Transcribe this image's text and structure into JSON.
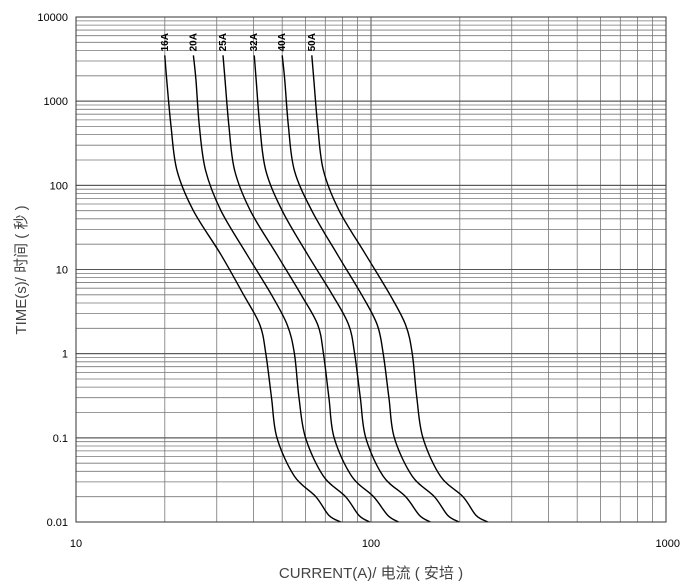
{
  "chart_data": {
    "type": "line",
    "title": "",
    "xlabel": "CURRENT(A)/ 电流 ( 安培 )",
    "ylabel": "TIME(s)/ 时间 ( 秒 )",
    "x_scale": "log",
    "y_scale": "log",
    "xlim": [
      10,
      1000
    ],
    "ylim": [
      0.01,
      10000
    ],
    "x_ticks": [
      "10",
      "100",
      "1000"
    ],
    "y_ticks": [
      "0.01",
      "0.1",
      "1",
      "10",
      "100",
      "1000",
      "10000"
    ],
    "grid": true,
    "legend": "labels at top of curves",
    "series": [
      {
        "name": "16A",
        "points": [
          [
            20,
            3500
          ],
          [
            20.3,
            1800
          ],
          [
            21,
            500
          ],
          [
            22,
            150
          ],
          [
            25,
            50
          ],
          [
            31,
            15
          ],
          [
            37,
            5
          ],
          [
            42,
            2.2
          ],
          [
            44,
            1
          ],
          [
            46,
            0.3
          ],
          [
            48,
            0.1
          ],
          [
            55,
            0.035
          ],
          [
            65,
            0.02
          ],
          [
            72,
            0.012
          ],
          [
            79,
            0.01
          ]
        ]
      },
      {
        "name": "20A",
        "points": [
          [
            25,
            3500
          ],
          [
            25.5,
            1800
          ],
          [
            26.2,
            500
          ],
          [
            27.5,
            150
          ],
          [
            31,
            50
          ],
          [
            38,
            15
          ],
          [
            46,
            5
          ],
          [
            52,
            2.2
          ],
          [
            55,
            1
          ],
          [
            57,
            0.3
          ],
          [
            60,
            0.1
          ],
          [
            69,
            0.035
          ],
          [
            82,
            0.02
          ],
          [
            91,
            0.012
          ],
          [
            99,
            0.01
          ]
        ]
      },
      {
        "name": "25A",
        "points": [
          [
            31.5,
            3500
          ],
          [
            32,
            1800
          ],
          [
            33,
            500
          ],
          [
            34.5,
            150
          ],
          [
            39,
            50
          ],
          [
            48,
            15
          ],
          [
            58,
            5
          ],
          [
            66,
            2.2
          ],
          [
            69,
            1
          ],
          [
            72,
            0.3
          ],
          [
            75,
            0.1
          ],
          [
            86,
            0.035
          ],
          [
            102,
            0.02
          ],
          [
            114,
            0.012
          ],
          [
            124,
            0.01
          ]
        ]
      },
      {
        "name": "32A",
        "points": [
          [
            40.2,
            3500
          ],
          [
            40.8,
            1800
          ],
          [
            42,
            500
          ],
          [
            44,
            150
          ],
          [
            50,
            50
          ],
          [
            61,
            15
          ],
          [
            74,
            5
          ],
          [
            84,
            2.2
          ],
          [
            88,
            1
          ],
          [
            92,
            0.3
          ],
          [
            96,
            0.1
          ],
          [
            110,
            0.035
          ],
          [
            131,
            0.02
          ],
          [
            146,
            0.012
          ],
          [
            159,
            0.01
          ]
        ]
      },
      {
        "name": "40A",
        "points": [
          [
            50,
            3500
          ],
          [
            51,
            1800
          ],
          [
            52.5,
            500
          ],
          [
            55,
            150
          ],
          [
            63,
            50
          ],
          [
            77,
            15
          ],
          [
            93,
            5
          ],
          [
            105,
            2.2
          ],
          [
            110,
            1
          ],
          [
            115,
            0.3
          ],
          [
            120,
            0.1
          ],
          [
            138,
            0.035
          ],
          [
            164,
            0.02
          ],
          [
            182,
            0.012
          ],
          [
            199,
            0.01
          ]
        ]
      },
      {
        "name": "50A",
        "points": [
          [
            63,
            3500
          ],
          [
            64,
            1800
          ],
          [
            66,
            500
          ],
          [
            69,
            150
          ],
          [
            78,
            50
          ],
          [
            96,
            15
          ],
          [
            116,
            5
          ],
          [
            131,
            2.2
          ],
          [
            138,
            1
          ],
          [
            143,
            0.3
          ],
          [
            150,
            0.1
          ],
          [
            172,
            0.035
          ],
          [
            205,
            0.02
          ],
          [
            227,
            0.012
          ],
          [
            249,
            0.01
          ]
        ]
      }
    ]
  }
}
